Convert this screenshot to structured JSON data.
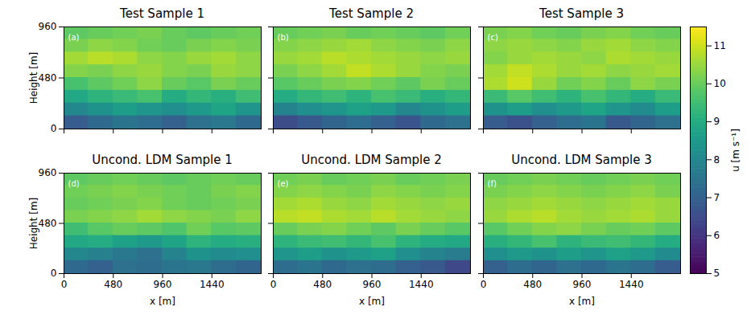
{
  "chart_data": [
    {
      "type": "heatmap",
      "title": "Test Sample 1",
      "panel_label": "(a)",
      "ylabel": "Height [m]",
      "tick_labels": "y",
      "xlim": [
        0,
        1920
      ],
      "ylim": [
        0,
        960
      ],
      "xticks": [
        0,
        480,
        960,
        1440
      ],
      "yticks": [
        0,
        480,
        960
      ],
      "x_edges": [
        0,
        240,
        480,
        720,
        960,
        1200,
        1440,
        1680,
        1920
      ],
      "y_edges": [
        960,
        840,
        720,
        600,
        480,
        360,
        240,
        120,
        0
      ],
      "z": [
        [
          9.9,
          10.0,
          10.1,
          10.2,
          10.0,
          9.9,
          10.0,
          10.1
        ],
        [
          10.2,
          10.4,
          10.3,
          10.1,
          10.0,
          10.2,
          10.3,
          10.2
        ],
        [
          10.6,
          10.8,
          10.7,
          10.4,
          10.3,
          10.5,
          10.6,
          10.4
        ],
        [
          10.3,
          10.2,
          10.4,
          10.5,
          10.3,
          10.2,
          10.5,
          10.4
        ],
        [
          9.6,
          9.9,
          10.1,
          10.4,
          10.0,
          9.8,
          10.2,
          10.0
        ],
        [
          8.9,
          9.2,
          9.4,
          9.6,
          9.0,
          9.3,
          9.1,
          9.5
        ],
        [
          8.0,
          8.3,
          8.6,
          8.4,
          8.2,
          8.5,
          8.8,
          8.4
        ],
        [
          6.9,
          7.2,
          7.5,
          7.3,
          7.0,
          7.4,
          7.6,
          7.2
        ]
      ]
    },
    {
      "type": "heatmap",
      "title": "Test Sample 2",
      "panel_label": "(b)",
      "tick_labels": false,
      "xlim": [
        0,
        1920
      ],
      "ylim": [
        0,
        960
      ],
      "xticks": [
        0,
        480,
        960,
        1440
      ],
      "yticks": [
        0,
        480,
        960
      ],
      "x_edges": [
        0,
        240,
        480,
        720,
        960,
        1200,
        1440,
        1680,
        1920
      ],
      "y_edges": [
        960,
        840,
        720,
        600,
        480,
        360,
        240,
        120,
        0
      ],
      "z": [
        [
          10.0,
          10.1,
          10.2,
          10.0,
          10.1,
          10.0,
          9.9,
          10.1
        ],
        [
          10.3,
          10.4,
          10.5,
          10.6,
          10.4,
          10.3,
          10.2,
          10.4
        ],
        [
          10.5,
          10.6,
          10.8,
          10.7,
          10.6,
          10.5,
          10.4,
          10.5
        ],
        [
          10.2,
          10.4,
          10.6,
          10.9,
          10.7,
          10.5,
          10.3,
          10.2
        ],
        [
          9.8,
          10.0,
          10.2,
          10.3,
          10.1,
          9.9,
          10.2,
          10.0
        ],
        [
          9.0,
          9.3,
          9.5,
          9.2,
          9.6,
          9.4,
          9.1,
          9.3
        ],
        [
          7.9,
          8.2,
          8.4,
          8.7,
          8.5,
          8.0,
          8.3,
          8.6
        ],
        [
          6.5,
          6.8,
          7.1,
          7.3,
          7.0,
          6.7,
          7.2,
          7.4
        ]
      ]
    },
    {
      "type": "heatmap",
      "title": "Test Sample 3",
      "panel_label": "(c)",
      "tick_labels": false,
      "xlim": [
        0,
        1920
      ],
      "ylim": [
        0,
        960
      ],
      "xticks": [
        0,
        480,
        960,
        1440
      ],
      "yticks": [
        0,
        480,
        960
      ],
      "x_edges": [
        0,
        240,
        480,
        720,
        960,
        1200,
        1440,
        1680,
        1920
      ],
      "y_edges": [
        960,
        840,
        720,
        600,
        480,
        360,
        240,
        120,
        0
      ],
      "z": [
        [
          10.2,
          10.3,
          10.1,
          10.0,
          10.2,
          10.3,
          10.1,
          10.0
        ],
        [
          10.4,
          10.5,
          10.4,
          10.3,
          10.5,
          10.6,
          10.4,
          10.3
        ],
        [
          10.3,
          10.5,
          10.6,
          10.5,
          10.4,
          10.7,
          10.6,
          10.5
        ],
        [
          10.6,
          10.9,
          10.7,
          10.5,
          10.6,
          10.4,
          10.5,
          10.6
        ],
        [
          10.7,
          11.0,
          10.5,
          10.1,
          10.3,
          10.0,
          10.4,
          10.2
        ],
        [
          9.4,
          9.8,
          9.5,
          9.2,
          9.6,
          9.3,
          9.0,
          9.4
        ],
        [
          8.3,
          8.6,
          8.2,
          8.5,
          8.8,
          8.4,
          8.1,
          8.6
        ],
        [
          6.9,
          6.6,
          7.0,
          7.3,
          7.5,
          6.8,
          7.1,
          7.4
        ]
      ]
    },
    {
      "type": "heatmap",
      "title": "Uncond. LDM Sample 1",
      "panel_label": "(d)",
      "xlabel": "x [m]",
      "ylabel": "Height [m]",
      "tick_labels": true,
      "xlim": [
        0,
        1920
      ],
      "ylim": [
        0,
        960
      ],
      "xticks": [
        0,
        480,
        960,
        1440
      ],
      "yticks": [
        0,
        480,
        960
      ],
      "x_edges": [
        0,
        240,
        480,
        720,
        960,
        1200,
        1440,
        1680,
        1920
      ],
      "y_edges": [
        960,
        840,
        720,
        600,
        480,
        360,
        240,
        120,
        0
      ],
      "z": [
        [
          9.9,
          10.0,
          10.1,
          10.0,
          9.9,
          10.0,
          10.1,
          10.0
        ],
        [
          10.1,
          10.2,
          10.3,
          10.2,
          10.1,
          10.0,
          10.2,
          10.3
        ],
        [
          10.0,
          10.1,
          10.2,
          10.3,
          10.1,
          10.0,
          10.1,
          10.2
        ],
        [
          10.2,
          10.3,
          10.4,
          10.6,
          10.4,
          10.3,
          10.2,
          10.4
        ],
        [
          9.5,
          9.8,
          10.0,
          9.9,
          9.7,
          10.1,
          9.8,
          9.9
        ],
        [
          8.9,
          9.0,
          8.7,
          8.5,
          8.8,
          9.2,
          9.0,
          9.1
        ],
        [
          8.0,
          7.8,
          7.6,
          7.4,
          7.9,
          8.3,
          8.1,
          8.2
        ],
        [
          7.2,
          7.0,
          7.4,
          7.3,
          7.5,
          7.6,
          7.3,
          7.1
        ]
      ]
    },
    {
      "type": "heatmap",
      "title": "Uncond. LDM Sample 2",
      "panel_label": "(e)",
      "xlabel": "x [m]",
      "tick_labels": "x",
      "xlim": [
        0,
        1920
      ],
      "ylim": [
        0,
        960
      ],
      "xticks": [
        0,
        480,
        960,
        1440
      ],
      "yticks": [
        0,
        480,
        960
      ],
      "x_edges": [
        0,
        240,
        480,
        720,
        960,
        1200,
        1440,
        1680,
        1920
      ],
      "y_edges": [
        960,
        840,
        720,
        600,
        480,
        360,
        240,
        120,
        0
      ],
      "z": [
        [
          10.1,
          10.2,
          10.0,
          10.1,
          10.2,
          10.0,
          10.1,
          10.2
        ],
        [
          10.3,
          10.4,
          10.3,
          10.2,
          10.4,
          10.3,
          10.2,
          10.3
        ],
        [
          10.6,
          10.7,
          10.5,
          10.4,
          10.6,
          10.5,
          10.4,
          10.5
        ],
        [
          10.8,
          10.9,
          10.7,
          10.6,
          10.8,
          10.6,
          10.5,
          10.4
        ],
        [
          10.0,
          10.2,
          10.3,
          10.1,
          9.9,
          10.2,
          10.0,
          9.8
        ],
        [
          9.2,
          9.4,
          9.5,
          9.3,
          9.6,
          9.2,
          9.0,
          8.9
        ],
        [
          8.4,
          8.6,
          8.3,
          8.5,
          8.7,
          8.2,
          7.9,
          7.7
        ],
        [
          7.3,
          7.5,
          7.2,
          7.4,
          7.3,
          7.0,
          6.8,
          6.4
        ]
      ]
    },
    {
      "type": "heatmap",
      "title": "Uncond. LDM Sample 3",
      "panel_label": "(f)",
      "xlabel": "x [m]",
      "tick_labels": "x",
      "xlim": [
        0,
        1920
      ],
      "ylim": [
        0,
        960
      ],
      "xticks": [
        0,
        480,
        960,
        1440
      ],
      "yticks": [
        0,
        480,
        960
      ],
      "x_edges": [
        0,
        240,
        480,
        720,
        960,
        1200,
        1440,
        1680,
        1920
      ],
      "y_edges": [
        960,
        840,
        720,
        600,
        480,
        360,
        240,
        120,
        0
      ],
      "z": [
        [
          10.0,
          10.1,
          10.2,
          10.1,
          10.0,
          10.1,
          10.2,
          10.1
        ],
        [
          10.2,
          10.3,
          10.4,
          10.3,
          10.2,
          10.3,
          10.4,
          10.2
        ],
        [
          10.4,
          10.5,
          10.6,
          10.5,
          10.4,
          10.5,
          10.6,
          10.5
        ],
        [
          10.5,
          10.7,
          10.8,
          10.6,
          10.5,
          10.6,
          10.7,
          10.5
        ],
        [
          9.8,
          10.1,
          10.3,
          10.4,
          10.2,
          10.0,
          10.1,
          9.9
        ],
        [
          9.1,
          9.3,
          9.6,
          9.2,
          9.4,
          9.5,
          9.3,
          9.0
        ],
        [
          8.2,
          8.5,
          8.3,
          8.6,
          8.4,
          8.7,
          8.5,
          8.1
        ],
        [
          7.0,
          7.3,
          7.1,
          7.4,
          7.2,
          7.5,
          7.3,
          6.9
        ]
      ]
    }
  ],
  "colorbar": {
    "label": "u [m s⁻¹]",
    "color": "viridis",
    "range": [
      5,
      11.5
    ],
    "ticks": [
      5,
      6,
      7,
      8,
      9,
      10,
      11
    ]
  }
}
